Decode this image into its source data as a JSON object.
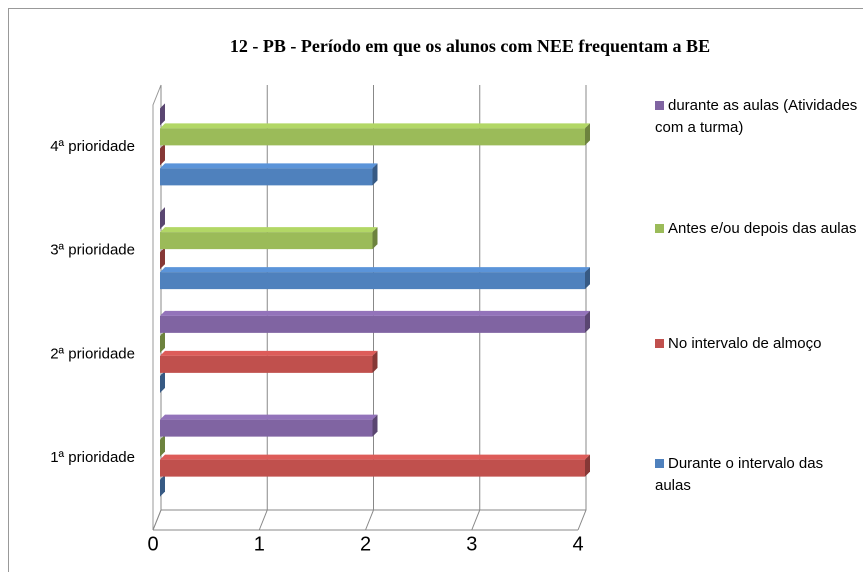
{
  "chart_data": {
    "type": "bar3d_horizontal",
    "title": "12 - PB - Período em que os alunos com NEE frequentam a BE",
    "categories": [
      "1ª prioridade",
      "2ª prioridade",
      "3ª prioridade",
      "4ª prioridade"
    ],
    "series": [
      {
        "name": "Durante o intervalo das aulas",
        "color": "#4f81bd",
        "values": [
          0,
          0,
          4,
          2
        ]
      },
      {
        "name": "No intervalo de almoço",
        "color": "#c0504d",
        "values": [
          4,
          2,
          0,
          0
        ]
      },
      {
        "name": "Antes e/ou depois das aulas",
        "color": "#9bbb59",
        "values": [
          0,
          0,
          2,
          4
        ]
      },
      {
        "name": "durante as aulas (Atividades com a turma)",
        "color": "#8064a2",
        "values": [
          2,
          4,
          0,
          0
        ]
      }
    ],
    "xlim": [
      0,
      4
    ],
    "xticks": [
      0,
      1,
      2,
      3,
      4
    ],
    "grid": true,
    "legend": "right"
  }
}
